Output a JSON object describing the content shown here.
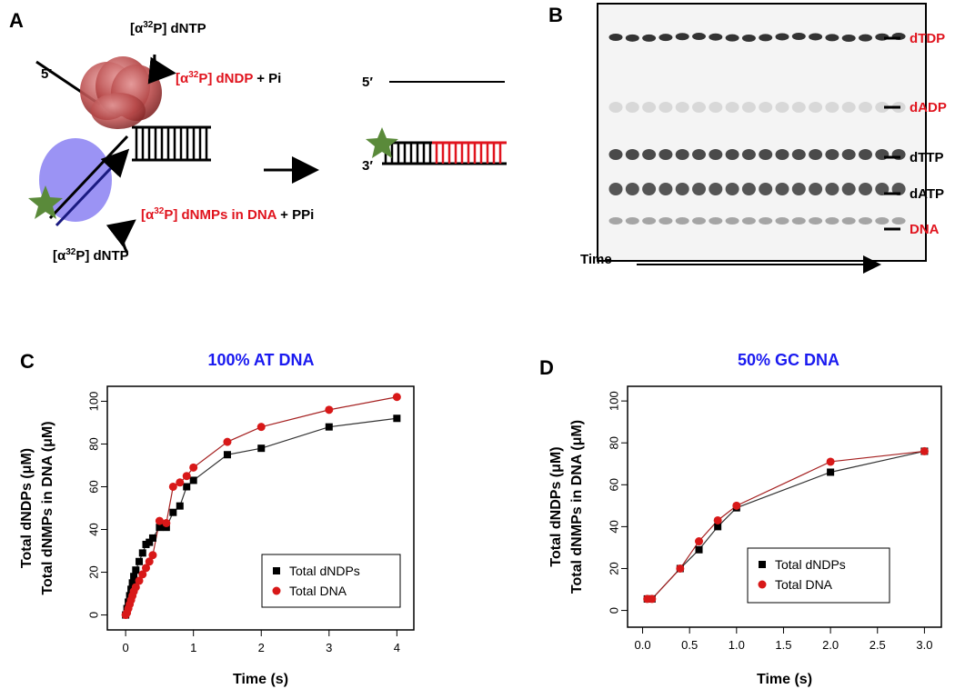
{
  "panel_a": {
    "letter": "A",
    "top_reagent": {
      "prefix": "[α",
      "sup": "32",
      "suffix": "P] dNTP"
    },
    "left_5prime": "5′",
    "product1": {
      "prefix": "[α",
      "sup": "32",
      "suffix": "P] dNDP",
      "extra": " + Pi"
    },
    "product2": {
      "prefix": "[α",
      "sup": "32",
      "suffix": "P] dNMPs in DNA",
      "extra": " + PPi"
    },
    "bottom_reagent": {
      "prefix": "[α",
      "sup": "32",
      "suffix": "P] dNTP"
    },
    "right_5prime": "5′",
    "right_3prime": "3′"
  },
  "panel_b": {
    "letter": "B",
    "bands": [
      {
        "label": "dTDP",
        "color": "#e0141e"
      },
      {
        "label": "dADP",
        "color": "#e0141e"
      },
      {
        "label": "dTTP",
        "color": "#000000"
      },
      {
        "label": "dATP",
        "color": "#000000"
      },
      {
        "label": "DNA",
        "color": "#e0141e"
      }
    ],
    "time_label": "Time"
  },
  "chart_data": [
    {
      "type": "scatter",
      "letter": "C",
      "title": "100% AT DNA",
      "x_label": "Time (s)",
      "y_label": [
        "Total dNDPs (μM)",
        "Total dNMPs in DNA (μM)"
      ],
      "xlim": [
        -0.27,
        4.25
      ],
      "ylim": [
        -7,
        107
      ],
      "xticks": [
        0,
        1,
        2,
        3,
        4
      ],
      "yticks": [
        0,
        20,
        40,
        60,
        80,
        100
      ],
      "legend": "lower right",
      "series": [
        {
          "name": "Total dNDPs",
          "color": "#000000",
          "marker": "square",
          "x": [
            0,
            0.02,
            0.04,
            0.06,
            0.08,
            0.1,
            0.12,
            0.15,
            0.2,
            0.25,
            0.3,
            0.35,
            0.4,
            0.5,
            0.6,
            0.7,
            0.8,
            0.9,
            1,
            1.5,
            2,
            3,
            4
          ],
          "values": [
            0,
            3,
            6,
            9,
            12,
            15,
            18,
            21,
            25,
            29,
            33,
            34,
            36,
            41,
            41,
            48,
            51,
            60,
            63,
            75,
            78,
            88,
            92
          ]
        },
        {
          "name": "Total DNA",
          "color": "#d81818",
          "marker": "circle",
          "x": [
            0,
            0.02,
            0.04,
            0.06,
            0.08,
            0.1,
            0.12,
            0.15,
            0.2,
            0.25,
            0.3,
            0.35,
            0.4,
            0.5,
            0.6,
            0.7,
            0.8,
            0.9,
            1,
            1.5,
            2,
            3,
            4
          ],
          "values": [
            0,
            1,
            3,
            5,
            7,
            9,
            11,
            13,
            16,
            19,
            22,
            25,
            28,
            44,
            43,
            60,
            62,
            65,
            69,
            81,
            88,
            96,
            102
          ]
        }
      ]
    },
    {
      "type": "scatter",
      "letter": "D",
      "title": "50% GC DNA",
      "x_label": "Time (s)",
      "y_label": [
        "Total dNDPs (μM)",
        "Total dNMPs in DNA (μM)"
      ],
      "xlim": [
        -0.16,
        3.18
      ],
      "ylim": [
        -8,
        107
      ],
      "xticks": [
        {
          "value": 0,
          "label": "0.0"
        },
        {
          "value": 0.5,
          "label": "0.5"
        },
        {
          "value": 1,
          "label": "1.0"
        },
        {
          "value": 1.5,
          "label": "1.5"
        },
        {
          "value": 2,
          "label": "2.0"
        },
        {
          "value": 2.5,
          "label": "2.5"
        },
        {
          "value": 3,
          "label": "3.0"
        }
      ],
      "yticks": [
        0,
        20,
        40,
        60,
        80,
        100
      ],
      "legend": "lower right",
      "series": [
        {
          "name": "Total dNDPs",
          "color": "#000000",
          "marker": "square",
          "x": [
            0.05,
            0.1,
            0.4,
            0.6,
            0.8,
            1,
            2,
            3
          ],
          "values": [
            5.5,
            5.5,
            20,
            29,
            40,
            49,
            66,
            76
          ]
        },
        {
          "name": "Total DNA",
          "color": "#d81818",
          "marker": "circle",
          "x": [
            0.05,
            0.1,
            0.4,
            0.6,
            0.8,
            1,
            2,
            3
          ],
          "values": [
            5.5,
            5.5,
            20,
            33,
            43,
            50,
            71,
            76
          ]
        }
      ]
    }
  ]
}
